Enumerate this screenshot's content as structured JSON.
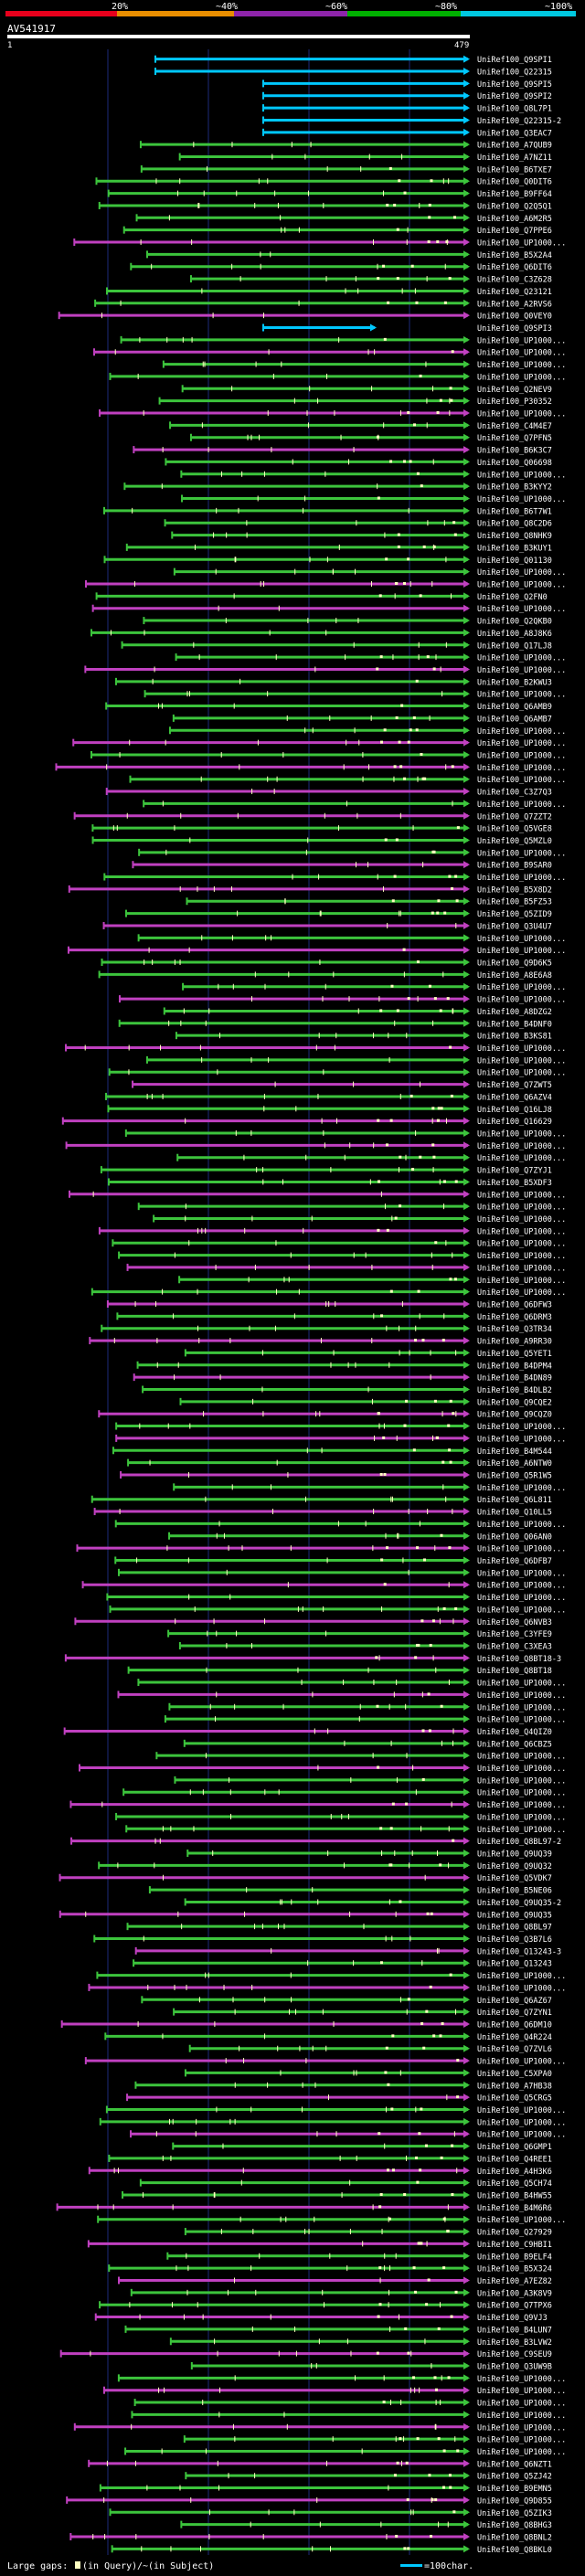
{
  "scale": {
    "ticks": [
      "20%",
      "~40%",
      "~60%",
      "~80%",
      "~100%"
    ],
    "band_colors": [
      "#e8001c",
      "#e88e00",
      "#8e24aa",
      "#00b000",
      "#00c8e0"
    ]
  },
  "query": {
    "name": "AV541917",
    "start_label": "1",
    "end_label": "479"
  },
  "colors": {
    "cyan": "#00c8ff",
    "green": "#3cc43c",
    "magenta": "#c040c0",
    "gap_box": "#ffffc0",
    "grid": "#1c2a7a"
  },
  "hits": [
    {
      "id": "UniRef100_Q9SPI1",
      "color": "cyan"
    },
    {
      "id": "UniRef100_Q22315",
      "color": "cyan"
    },
    {
      "id": "UniRef100_Q9SPI5",
      "color": "cyan"
    },
    {
      "id": "UniRef100_Q9SPI2",
      "color": "cyan"
    },
    {
      "id": "UniRef100_Q8L7P1",
      "color": "cyan"
    },
    {
      "id": "UniRef100_Q22315-2",
      "color": "cyan"
    },
    {
      "id": "UniRef100_Q3EAC7",
      "color": "cyan"
    },
    {
      "id": "UniRef100_A7QUB9",
      "color": "green"
    },
    {
      "id": "UniRef100_A7NZ11",
      "color": "green"
    },
    {
      "id": "UniRef100_B6TXE7",
      "color": "green"
    },
    {
      "id": "UniRef100_Q0DIT6",
      "color": "green"
    },
    {
      "id": "UniRef100_B9FF64",
      "color": "green"
    },
    {
      "id": "UniRef100_Q2Q5Q1",
      "color": "green"
    },
    {
      "id": "UniRef100_A6M2R5",
      "color": "green"
    },
    {
      "id": "UniRef100_Q7PPE6",
      "color": "green"
    },
    {
      "id": "UniRef100_UP1000...",
      "color": "magenta"
    },
    {
      "id": "UniRef100_B5X2A4",
      "color": "green"
    },
    {
      "id": "UniRef100_Q6DIT6",
      "color": "green"
    },
    {
      "id": "UniRef100_C3Z628",
      "color": "green"
    },
    {
      "id": "UniRef100_Q23121",
      "color": "green"
    },
    {
      "id": "UniRef100_A2RVS6",
      "color": "green"
    },
    {
      "id": "UniRef100_Q0VEY0",
      "color": "magenta"
    },
    {
      "id": "UniRef100_Q9SPI3",
      "color": "cyan"
    },
    {
      "id": "UniRef100_UP1000...",
      "color": "green"
    },
    {
      "id": "UniRef100_UP1000...",
      "color": "magenta"
    },
    {
      "id": "UniRef100_UP1000...",
      "color": "green"
    },
    {
      "id": "UniRef100_UP1000...",
      "color": "green"
    },
    {
      "id": "UniRef100_Q2NEV9",
      "color": "green"
    },
    {
      "id": "UniRef100_P30352",
      "color": "green"
    },
    {
      "id": "UniRef100_UP1000...",
      "color": "magenta"
    },
    {
      "id": "UniRef100_C4M4E7",
      "color": "green"
    },
    {
      "id": "UniRef100_Q7PFN5",
      "color": "green"
    },
    {
      "id": "UniRef100_B6K3C7",
      "color": "magenta"
    },
    {
      "id": "UniRef100_Q06698",
      "color": "green"
    },
    {
      "id": "UniRef100_UP1000...",
      "color": "green"
    },
    {
      "id": "UniRef100_B3KYY2",
      "color": "green"
    },
    {
      "id": "UniRef100_UP1000...",
      "color": "green"
    },
    {
      "id": "UniRef100_B6T7W1",
      "color": "green"
    },
    {
      "id": "UniRef100_Q8C2D6",
      "color": "green"
    },
    {
      "id": "UniRef100_Q8NHK9",
      "color": "green"
    },
    {
      "id": "UniRef100_B3KUY1",
      "color": "green"
    },
    {
      "id": "UniRef100_Q01130",
      "color": "green"
    },
    {
      "id": "UniRef100_UP1000...",
      "color": "green"
    },
    {
      "id": "UniRef100_UP1000...",
      "color": "magenta"
    },
    {
      "id": "UniRef100_Q2FN0",
      "color": "green"
    },
    {
      "id": "UniRef100_UP1000...",
      "color": "magenta"
    },
    {
      "id": "UniRef100_Q2QKB0",
      "color": "green"
    },
    {
      "id": "UniRef100_A8J8K6",
      "color": "green"
    },
    {
      "id": "UniRef100_Q17LJ8",
      "color": "green"
    },
    {
      "id": "UniRef100_UP1000...",
      "color": "green"
    },
    {
      "id": "UniRef100_UP1000...",
      "color": "magenta"
    },
    {
      "id": "UniRef100_B2KWU3",
      "color": "green"
    },
    {
      "id": "UniRef100_UP1000...",
      "color": "green"
    },
    {
      "id": "UniRef100_Q6AMB9",
      "color": "green"
    },
    {
      "id": "UniRef100_Q6AMB7",
      "color": "green"
    },
    {
      "id": "UniRef100_UP1000...",
      "color": "green"
    },
    {
      "id": "UniRef100_UP1000...",
      "color": "magenta"
    },
    {
      "id": "UniRef100_UP1000...",
      "color": "green"
    },
    {
      "id": "UniRef100_UP1000...",
      "color": "magenta"
    },
    {
      "id": "UniRef100_UP1000...",
      "color": "green"
    },
    {
      "id": "UniRef100_C3Z7Q3",
      "color": "magenta"
    },
    {
      "id": "UniRef100_UP1000...",
      "color": "green"
    },
    {
      "id": "UniRef100_Q7ZZT2",
      "color": "magenta"
    },
    {
      "id": "UniRef100_Q5VGE8",
      "color": "green"
    },
    {
      "id": "UniRef100_Q5MZL0",
      "color": "green"
    },
    {
      "id": "UniRef100_UP1000...",
      "color": "green"
    },
    {
      "id": "UniRef100_B9SAR0",
      "color": "magenta"
    },
    {
      "id": "UniRef100_UP1000...",
      "color": "green"
    },
    {
      "id": "UniRef100_B5X8D2",
      "color": "magenta"
    },
    {
      "id": "UniRef100_B5FZ53",
      "color": "green"
    },
    {
      "id": "UniRef100_Q5ZID9",
      "color": "green"
    },
    {
      "id": "UniRef100_Q3U4U7",
      "color": "magenta"
    },
    {
      "id": "UniRef100_UP1000...",
      "color": "green"
    },
    {
      "id": "UniRef100_UP1000...",
      "color": "magenta"
    },
    {
      "id": "UniRef100_Q9D6K5",
      "color": "green"
    },
    {
      "id": "UniRef100_A8E6A8",
      "color": "green"
    },
    {
      "id": "UniRef100_UP1000...",
      "color": "green"
    },
    {
      "id": "UniRef100_UP1000...",
      "color": "magenta"
    },
    {
      "id": "UniRef100_A8DZG2",
      "color": "green"
    },
    {
      "id": "UniRef100_B4DNF0",
      "color": "green"
    },
    {
      "id": "UniRef100_B3KS81",
      "color": "green"
    },
    {
      "id": "UniRef100_UP1000...",
      "color": "magenta"
    },
    {
      "id": "UniRef100_UP1000...",
      "color": "green"
    },
    {
      "id": "UniRef100_UP1000...",
      "color": "green"
    },
    {
      "id": "UniRef100_Q7ZWT5",
      "color": "magenta"
    },
    {
      "id": "UniRef100_Q6AZV4",
      "color": "green"
    },
    {
      "id": "UniRef100_Q16LJ8",
      "color": "green"
    },
    {
      "id": "UniRef100_Q16629",
      "color": "magenta"
    },
    {
      "id": "UniRef100_UP1000...",
      "color": "green"
    },
    {
      "id": "UniRef100_UP1000...",
      "color": "magenta"
    },
    {
      "id": "UniRef100_UP1000...",
      "color": "green"
    },
    {
      "id": "UniRef100_Q7ZYJ1",
      "color": "green"
    },
    {
      "id": "UniRef100_B5XDF3",
      "color": "green"
    },
    {
      "id": "UniRef100_UP1000...",
      "color": "magenta"
    },
    {
      "id": "UniRef100_UP1000...",
      "color": "green"
    },
    {
      "id": "UniRef100_UP1000...",
      "color": "green"
    },
    {
      "id": "UniRef100_UP1000...",
      "color": "magenta"
    },
    {
      "id": "UniRef100_UP1000...",
      "color": "green"
    },
    {
      "id": "UniRef100_UP1000...",
      "color": "green"
    },
    {
      "id": "UniRef100_UP1000...",
      "color": "magenta"
    },
    {
      "id": "UniRef100_UP1000...",
      "color": "green"
    },
    {
      "id": "UniRef100_UP1000...",
      "color": "green"
    },
    {
      "id": "UniRef100_Q6DFW3",
      "color": "magenta"
    },
    {
      "id": "UniRef100_Q6DRM3",
      "color": "green"
    },
    {
      "id": "UniRef100_Q3TR34",
      "color": "green"
    },
    {
      "id": "UniRef100_A9RR30",
      "color": "magenta"
    },
    {
      "id": "UniRef100_Q5YET1",
      "color": "green"
    },
    {
      "id": "UniRef100_B4DPM4",
      "color": "green"
    },
    {
      "id": "UniRef100_B4DN89",
      "color": "magenta"
    },
    {
      "id": "UniRef100_B4DLB2",
      "color": "green"
    },
    {
      "id": "UniRef100_Q9CQE2",
      "color": "green"
    },
    {
      "id": "UniRef100_Q9CQZ0",
      "color": "magenta"
    },
    {
      "id": "UniRef100_UP1000...",
      "color": "green"
    },
    {
      "id": "UniRef100_UP1000...",
      "color": "magenta"
    },
    {
      "id": "UniRef100_B4M544",
      "color": "green"
    },
    {
      "id": "UniRef100_A6NTW0",
      "color": "green"
    },
    {
      "id": "UniRef100_Q5R1W5",
      "color": "magenta"
    },
    {
      "id": "UniRef100_UP1000...",
      "color": "green"
    },
    {
      "id": "UniRef100_Q6L811",
      "color": "green"
    },
    {
      "id": "UniRef100_Q10LL5",
      "color": "magenta"
    },
    {
      "id": "UniRef100_UP1000...",
      "color": "green"
    },
    {
      "id": "UniRef100_Q06AN0",
      "color": "green"
    },
    {
      "id": "UniRef100_UP1000...",
      "color": "magenta"
    },
    {
      "id": "UniRef100_Q6DFB7",
      "color": "green"
    },
    {
      "id": "UniRef100_UP1000...",
      "color": "green"
    },
    {
      "id": "UniRef100_UP1000...",
      "color": "magenta"
    },
    {
      "id": "UniRef100_UP1000...",
      "color": "green"
    },
    {
      "id": "UniRef100_UP1000...",
      "color": "green"
    },
    {
      "id": "UniRef100_Q6NVB3",
      "color": "magenta"
    },
    {
      "id": "UniRef100_C3YFE9",
      "color": "green"
    },
    {
      "id": "UniRef100_C3XEA3",
      "color": "green"
    },
    {
      "id": "UniRef100_Q8BT18-3",
      "color": "magenta"
    },
    {
      "id": "UniRef100_Q8BT18",
      "color": "green"
    },
    {
      "id": "UniRef100_UP1000...",
      "color": "green"
    },
    {
      "id": "UniRef100_UP1000...",
      "color": "magenta"
    },
    {
      "id": "UniRef100_UP1000...",
      "color": "green"
    },
    {
      "id": "UniRef100_UP1000...",
      "color": "green"
    },
    {
      "id": "UniRef100_Q4QIZ0",
      "color": "magenta"
    },
    {
      "id": "UniRef100_Q6CBZ5",
      "color": "green"
    },
    {
      "id": "UniRef100_UP1000...",
      "color": "green"
    },
    {
      "id": "UniRef100_UP1000...",
      "color": "magenta"
    },
    {
      "id": "UniRef100_UP1000...",
      "color": "green"
    },
    {
      "id": "UniRef100_UP1000...",
      "color": "green"
    },
    {
      "id": "UniRef100_UP1000...",
      "color": "magenta"
    },
    {
      "id": "UniRef100_UP1000...",
      "color": "green"
    },
    {
      "id": "UniRef100_UP1000...",
      "color": "green"
    },
    {
      "id": "UniRef100_Q8BL97-2",
      "color": "magenta"
    },
    {
      "id": "UniRef100_Q9UQ39",
      "color": "green"
    },
    {
      "id": "UniRef100_Q9UQ32",
      "color": "green"
    },
    {
      "id": "UniRef100_Q5VDK7",
      "color": "magenta"
    },
    {
      "id": "UniRef100_B5NE06",
      "color": "green"
    },
    {
      "id": "UniRef100_Q9UQ35-2",
      "color": "green"
    },
    {
      "id": "UniRef100_Q9UQ35",
      "color": "magenta"
    },
    {
      "id": "UniRef100_Q8BL97",
      "color": "green"
    },
    {
      "id": "UniRef100_Q3B7L6",
      "color": "green"
    },
    {
      "id": "UniRef100_Q13243-3",
      "color": "magenta"
    },
    {
      "id": "UniRef100_Q13243",
      "color": "green"
    },
    {
      "id": "UniRef100_UP1000...",
      "color": "green"
    },
    {
      "id": "UniRef100_UP1000...",
      "color": "magenta"
    },
    {
      "id": "UniRef100_Q6AZ67",
      "color": "green"
    },
    {
      "id": "UniRef100_Q7ZYN1",
      "color": "green"
    },
    {
      "id": "UniRef100_Q6DM10",
      "color": "magenta"
    },
    {
      "id": "UniRef100_Q4R224",
      "color": "green"
    },
    {
      "id": "UniRef100_Q7ZVL6",
      "color": "green"
    },
    {
      "id": "UniRef100_UP1000...",
      "color": "magenta"
    },
    {
      "id": "UniRef100_C5XPA0",
      "color": "green"
    },
    {
      "id": "UniRef100_A7HB38",
      "color": "green"
    },
    {
      "id": "UniRef100_Q5CRG5",
      "color": "magenta"
    },
    {
      "id": "UniRef100_UP1000...",
      "color": "green"
    },
    {
      "id": "UniRef100_UP1000...",
      "color": "green"
    },
    {
      "id": "UniRef100_UP1000...",
      "color": "magenta"
    },
    {
      "id": "UniRef100_Q6GMP1",
      "color": "green"
    },
    {
      "id": "UniRef100_Q4REE1",
      "color": "green"
    },
    {
      "id": "UniRef100_A4H3K6",
      "color": "magenta"
    },
    {
      "id": "UniRef100_Q5CH74",
      "color": "green"
    },
    {
      "id": "UniRef100_B4HW55",
      "color": "green"
    },
    {
      "id": "UniRef100_B4M6R6",
      "color": "magenta"
    },
    {
      "id": "UniRef100_UP1000...",
      "color": "green"
    },
    {
      "id": "UniRef100_Q27929",
      "color": "green"
    },
    {
      "id": "UniRef100_C9HBI1",
      "color": "magenta"
    },
    {
      "id": "UniRef100_B9ELF4",
      "color": "green"
    },
    {
      "id": "UniRef100_B5X324",
      "color": "green"
    },
    {
      "id": "UniRef100_A7EZ82",
      "color": "magenta"
    },
    {
      "id": "UniRef100_A3K8V9",
      "color": "green"
    },
    {
      "id": "UniRef100_Q7TPX6",
      "color": "green"
    },
    {
      "id": "UniRef100_Q9VJ3",
      "color": "magenta"
    },
    {
      "id": "UniRef100_B4LUN7",
      "color": "green"
    },
    {
      "id": "UniRef100_B3LVW2",
      "color": "green"
    },
    {
      "id": "UniRef100_C9SEU9",
      "color": "magenta"
    },
    {
      "id": "UniRef100_Q3UW9B",
      "color": "green"
    },
    {
      "id": "UniRef100_UP1000...",
      "color": "green"
    },
    {
      "id": "UniRef100_UP1000...",
      "color": "magenta"
    },
    {
      "id": "UniRef100_UP1000...",
      "color": "green"
    },
    {
      "id": "UniRef100_UP1000...",
      "color": "green"
    },
    {
      "id": "UniRef100_UP1000...",
      "color": "magenta"
    },
    {
      "id": "UniRef100_UP1000...",
      "color": "green"
    },
    {
      "id": "UniRef100_UP1000...",
      "color": "green"
    },
    {
      "id": "UniRef100_Q6NZT1",
      "color": "magenta"
    },
    {
      "id": "UniRef100_Q5ZJ42",
      "color": "green"
    },
    {
      "id": "UniRef100_B9EMN5",
      "color": "green"
    },
    {
      "id": "UniRef100_Q9D855",
      "color": "magenta"
    },
    {
      "id": "UniRef100_Q5ZIK3",
      "color": "green"
    },
    {
      "id": "UniRef100_Q8BHG3",
      "color": "green"
    },
    {
      "id": "UniRef100_Q8BNL2",
      "color": "magenta"
    },
    {
      "id": "UniRef100_Q8BKL0",
      "color": "green"
    }
  ],
  "footer": {
    "gaps_label": "Large gaps:",
    "gaps_query": "(in Query)",
    "gaps_subject": "/~(in Subject)",
    "scale_text": "=100char."
  }
}
